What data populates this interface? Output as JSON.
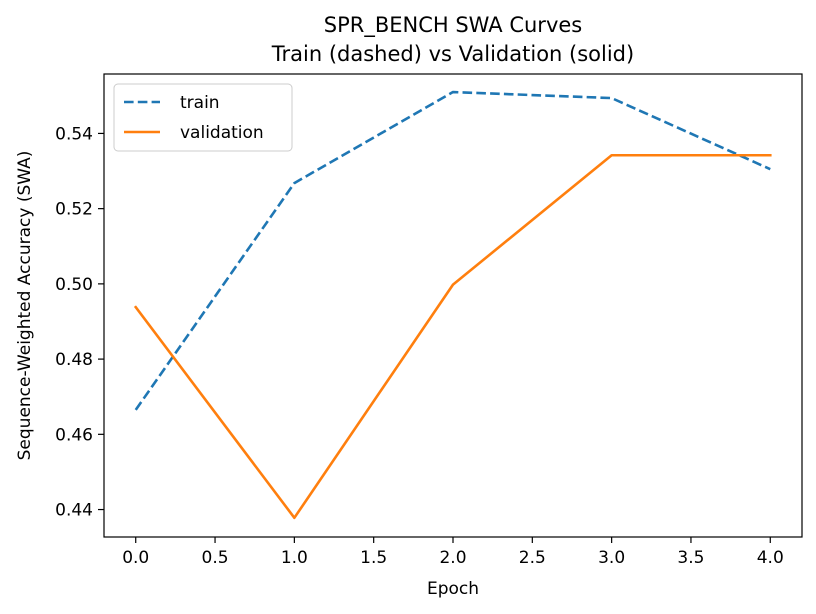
{
  "chart_data": {
    "type": "line",
    "title": "SPR_BENCH SWA Curves",
    "subtitle": "Train (dashed) vs Validation (solid)",
    "xlabel": "Epoch",
    "ylabel": "Sequence-Weighted Accuracy (SWA)",
    "xlim": [
      -0.2,
      4.2
    ],
    "ylim": [
      0.4327,
      0.5558
    ],
    "x_ticks": [
      0.0,
      0.5,
      1.0,
      1.5,
      2.0,
      2.5,
      3.0,
      3.5,
      4.0
    ],
    "x_tick_labels": [
      "0.0",
      "0.5",
      "1.0",
      "1.5",
      "2.0",
      "2.5",
      "3.0",
      "3.5",
      "4.0"
    ],
    "y_ticks": [
      0.44,
      0.46,
      0.48,
      0.5,
      0.52,
      0.54
    ],
    "y_tick_labels": [
      "0.44",
      "0.46",
      "0.48",
      "0.50",
      "0.52",
      "0.54"
    ],
    "grid": false,
    "legend_position": "upper left",
    "x": [
      0,
      1,
      2,
      3,
      4
    ],
    "series": [
      {
        "name": "train",
        "values": [
          0.4665,
          0.5268,
          0.551,
          0.5494,
          0.5305
        ],
        "color": "#1f77b4",
        "style": "dashed"
      },
      {
        "name": "validation",
        "values": [
          0.4938,
          0.4378,
          0.4998,
          0.5342,
          0.5342
        ],
        "color": "#ff7f0e",
        "style": "solid"
      }
    ]
  }
}
